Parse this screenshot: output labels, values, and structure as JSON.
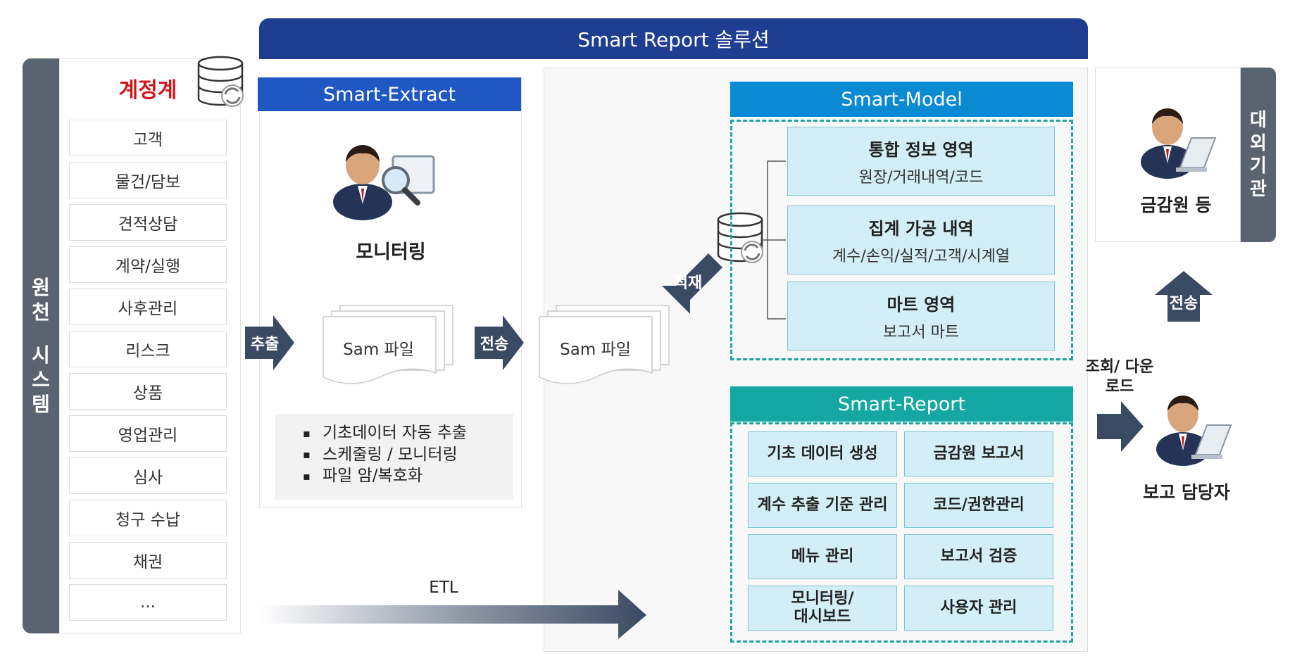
{
  "banner": {
    "title": "Smart Report 솔루션"
  },
  "source": {
    "strip_label": [
      "원",
      "천",
      "",
      "시",
      "스",
      "템"
    ],
    "ledger_title": "계정계",
    "items": [
      "고객",
      "물건/담보",
      "견적상담",
      "계약/실행",
      "사후관리",
      "리스크",
      "상품",
      "영업관리",
      "심사",
      "청구 수납",
      "채권",
      "..."
    ]
  },
  "extract": {
    "header": "Smart-Extract",
    "monitoring_label": "모니터링",
    "file_label": "Sam 파일",
    "features": [
      "기초데이터 자동 추출",
      "스케줄링 / 모니터링",
      "파일 암/복호화"
    ]
  },
  "arrows": {
    "extract": "추출",
    "transfer": "전송",
    "load": "적재",
    "etl": "ETL",
    "send_up": "전송",
    "query": "조회/ 다운로드"
  },
  "etl": {
    "file_label": "Sam 파일"
  },
  "model": {
    "header": "Smart-Model",
    "areas": [
      {
        "title": "통합 정보 영역",
        "sub": "원장/거래내역/코드"
      },
      {
        "title": "집계 가공 내역",
        "sub": "계수/손익/실적/고객/시계열"
      },
      {
        "title": "마트 영역",
        "sub": "보고서 마트"
      }
    ]
  },
  "report": {
    "header": "Smart-Report",
    "cells": [
      "기초 데이터 생성",
      "금감원 보고서",
      "계수 추출 기준 관리",
      "코드/권한관리",
      "메뉴 관리",
      "보고서 검증",
      "모니터링/\n대시보드",
      "사용자 관리"
    ]
  },
  "external": {
    "strip_label": [
      "대",
      "외",
      "기",
      "관"
    ],
    "fss_label": "금감원 등",
    "reporter_label": "보고 담당자"
  },
  "colors": {
    "banner": "#1f3e92",
    "extract": "#1f57c3",
    "model": "#0b8ad4",
    "report": "#15a8a3",
    "ledger": "#d0161b",
    "strip": "#5a6470",
    "arrow": "#3b4a63"
  }
}
